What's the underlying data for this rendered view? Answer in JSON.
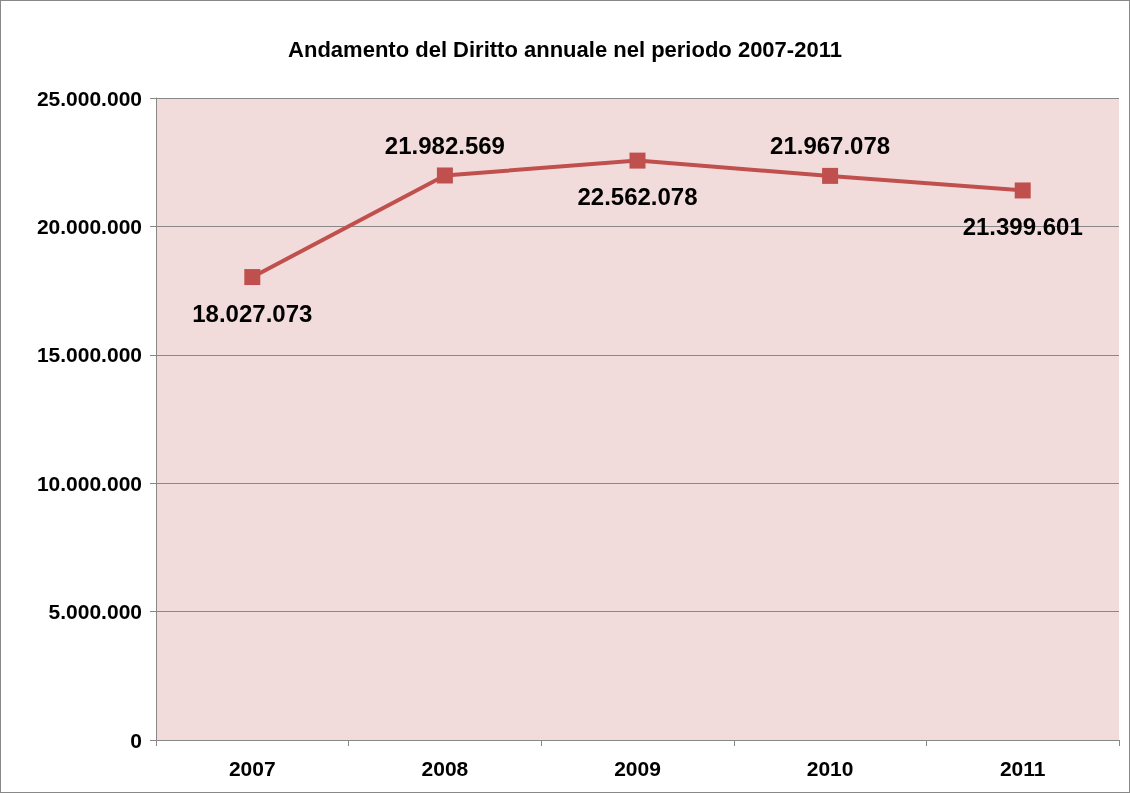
{
  "chart_data": {
    "type": "line",
    "title": "Andamento del Diritto annuale nel periodo 2007-2011",
    "categories": [
      "2007",
      "2008",
      "2009",
      "2010",
      "2011"
    ],
    "series": [
      {
        "color": "#c0504d",
        "values": [
          18027073,
          21982569,
          22562078,
          21967078,
          21399601
        ],
        "value_labels": [
          "18.027.073",
          "21.982.569",
          "22.562.078",
          "21.967.078",
          "21.399.601"
        ]
      }
    ],
    "ylim": [
      0,
      25000000
    ],
    "yticks": [
      {
        "value": 0,
        "label": "0"
      },
      {
        "value": 5000000,
        "label": "5.000.000"
      },
      {
        "value": 10000000,
        "label": "10.000.000"
      },
      {
        "value": 15000000,
        "label": "15.000.000"
      },
      {
        "value": 20000000,
        "label": "20.000.000"
      },
      {
        "value": 25000000,
        "label": "25.000.000"
      }
    ],
    "grid": "y",
    "marker": "square",
    "line_style": "solid"
  }
}
